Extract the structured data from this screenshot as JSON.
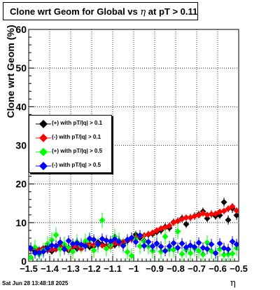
{
  "title": {
    "prefix": "Clone wrt Geom for Global vs",
    "eta": "η",
    "suffix": "at pT > 0.11"
  },
  "footer": "Sat Jun 28 13:48:18 2025",
  "ylabel": "Clone wrt Geom (%)",
  "xlabel": "η",
  "colors": {
    "black": "#000000",
    "red": "#ff0000",
    "green": "#00ff00",
    "blue": "#0000ff"
  },
  "chart_data": {
    "type": "scatter",
    "xlim": [
      -1.5,
      -0.5
    ],
    "ylim": [
      0,
      60
    ],
    "grid": true,
    "x_ticks": [
      "−1.5",
      "−1.4",
      "−1.3",
      "−1.2",
      "−1.1",
      "−1",
      "−0.9",
      "−0.8",
      "−0.7",
      "−0.6",
      "−0.5"
    ],
    "x_tick_values": [
      -1.5,
      -1.4,
      -1.3,
      -1.2,
      -1.1,
      -1.0,
      -0.9,
      -0.8,
      -0.7,
      -0.6,
      -0.5
    ],
    "y_ticks": [
      "0",
      "10",
      "20",
      "30",
      "40",
      "50",
      "60"
    ],
    "y_tick_values": [
      0,
      10,
      20,
      30,
      40,
      50,
      60
    ],
    "legend_position": "left-middle",
    "series": [
      {
        "name": "(+) with pT/|q| > 0.1",
        "color": "black",
        "x": [
          -1.49,
          -1.47,
          -1.45,
          -1.43,
          -1.41,
          -1.39,
          -1.37,
          -1.35,
          -1.33,
          -1.31,
          -1.29,
          -1.27,
          -1.25,
          -1.23,
          -1.21,
          -1.19,
          -1.17,
          -1.15,
          -1.13,
          -1.11,
          -1.09,
          -1.07,
          -1.05,
          -1.03,
          -1.01,
          -0.99,
          -0.97,
          -0.95,
          -0.93,
          -0.91,
          -0.89,
          -0.87,
          -0.85,
          -0.83,
          -0.81,
          -0.79,
          -0.77,
          -0.75,
          -0.73,
          -0.71,
          -0.69,
          -0.67,
          -0.65,
          -0.63,
          -0.61,
          -0.59,
          -0.57,
          -0.55,
          -0.53,
          -0.51
        ],
        "y": [
          3.2,
          2.6,
          3.0,
          3.4,
          3.9,
          2.6,
          3.2,
          4.4,
          3.7,
          2.8,
          3.7,
          3.3,
          4.1,
          4.6,
          3.7,
          3.9,
          4.9,
          4.4,
          3.9,
          4.4,
          4.2,
          4.9,
          4.6,
          5.3,
          5.9,
          6.9,
          6.1,
          5.3,
          6.9,
          7.1,
          7.6,
          8.0,
          8.9,
          8.6,
          10.1,
          10.4,
          11.1,
          9.6,
          11.3,
          11.7,
          12.1,
          12.9,
          11.1,
          12.2,
          11.7,
          11.9,
          15.3,
          10.7,
          13.7,
          11.9
        ],
        "err": [
          1.0,
          0.9,
          0.9,
          1.0,
          1.0,
          0.9,
          0.9,
          1.0,
          1.0,
          0.9,
          0.9,
          0.9,
          1.0,
          1.0,
          0.9,
          0.9,
          1.0,
          1.0,
          0.9,
          0.9,
          0.9,
          1.0,
          1.0,
          1.0,
          1.0,
          1.0,
          1.0,
          1.0,
          1.0,
          1.0,
          1.0,
          1.0,
          1.0,
          1.0,
          1.0,
          1.0,
          1.0,
          1.0,
          1.0,
          1.0,
          1.0,
          1.0,
          1.0,
          1.0,
          1.0,
          1.0,
          1.2,
          1.2,
          1.2,
          1.2
        ]
      },
      {
        "name": "(-) with pT/|q| > 0.1",
        "color": "red",
        "x": [
          -1.49,
          -1.47,
          -1.45,
          -1.43,
          -1.41,
          -1.39,
          -1.37,
          -1.35,
          -1.33,
          -1.31,
          -1.29,
          -1.27,
          -1.25,
          -1.23,
          -1.21,
          -1.19,
          -1.17,
          -1.15,
          -1.13,
          -1.11,
          -1.09,
          -1.07,
          -1.05,
          -1.03,
          -1.01,
          -0.99,
          -0.97,
          -0.95,
          -0.93,
          -0.91,
          -0.89,
          -0.87,
          -0.85,
          -0.83,
          -0.81,
          -0.79,
          -0.77,
          -0.75,
          -0.73,
          -0.71,
          -0.69,
          -0.67,
          -0.65,
          -0.63,
          -0.61,
          -0.59,
          -0.57,
          -0.55,
          -0.53,
          -0.51
        ],
        "y": [
          3.3,
          3.5,
          2.9,
          3.3,
          2.9,
          3.1,
          3.1,
          4.0,
          3.6,
          3.2,
          3.7,
          3.9,
          3.2,
          4.4,
          4.4,
          4.2,
          4.5,
          4.1,
          4.0,
          3.8,
          4.7,
          4.6,
          5.1,
          5.5,
          5.7,
          6.1,
          6.5,
          6.7,
          7.0,
          7.4,
          8.0,
          8.5,
          8.7,
          9.2,
          10.0,
          10.4,
          10.9,
          11.3,
          11.3,
          11.7,
          11.9,
          12.4,
          12.0,
          12.2,
          12.3,
          12.8,
          13.0,
          13.6,
          14.2,
          13.1
        ],
        "err": [
          0.8,
          0.8,
          0.8,
          0.8,
          0.8,
          0.8,
          0.8,
          0.8,
          0.8,
          0.8,
          0.8,
          0.8,
          0.8,
          0.8,
          0.8,
          0.8,
          0.8,
          0.8,
          0.8,
          0.8,
          0.8,
          0.8,
          0.8,
          0.8,
          0.8,
          0.8,
          0.8,
          0.8,
          0.8,
          0.8,
          0.8,
          0.8,
          0.8,
          0.8,
          0.8,
          0.8,
          0.8,
          0.8,
          0.8,
          0.8,
          0.8,
          0.8,
          0.8,
          0.8,
          0.8,
          0.8,
          0.9,
          0.9,
          0.9,
          0.9
        ]
      },
      {
        "name": "(+) with pT/|q| > 0.5",
        "color": "green",
        "x": [
          -1.49,
          -1.47,
          -1.45,
          -1.43,
          -1.41,
          -1.39,
          -1.37,
          -1.35,
          -1.33,
          -1.31,
          -1.29,
          -1.27,
          -1.25,
          -1.23,
          -1.21,
          -1.19,
          -1.17,
          -1.15,
          -1.13,
          -1.11,
          -1.09,
          -1.07,
          -1.05,
          -1.03,
          -1.01,
          -0.99,
          -0.97,
          -0.95,
          -0.93,
          -0.91,
          -0.89,
          -0.87,
          -0.85,
          -0.83,
          -0.81,
          -0.79,
          -0.77,
          -0.75,
          -0.73,
          -0.71,
          -0.69,
          -0.67,
          -0.65,
          -0.63,
          -0.61,
          -0.59,
          -0.57,
          -0.55,
          -0.53,
          -0.51
        ],
        "y": [
          1.0,
          3.6,
          1.8,
          2.8,
          4.5,
          5.5,
          6.8,
          3.2,
          4.4,
          3.6,
          2.5,
          5.0,
          4.1,
          5.2,
          5.5,
          2.8,
          4.2,
          10.6,
          3.3,
          4.2,
          6.4,
          5.4,
          4.1,
          2.4,
          1.4,
          5.7,
          3.9,
          5.1,
          3.8,
          2.7,
          4.5,
          2.5,
          6.4,
          3.1,
          3.0,
          7.7,
          1.9,
          3.0,
          2.1,
          3.3,
          2.7,
          1.8,
          4.8,
          2.6,
          2.1,
          3.1,
          1.7,
          1.8,
          2.0,
          3.4
        ],
        "err": [
          2.2,
          2.0,
          2.0,
          2.0,
          2.0,
          2.0,
          2.0,
          2.0,
          2.0,
          2.0,
          2.0,
          2.0,
          2.0,
          2.0,
          2.0,
          2.0,
          2.0,
          2.0,
          2.0,
          2.0,
          2.0,
          2.0,
          2.0,
          2.0,
          2.0,
          2.0,
          2.0,
          2.0,
          2.0,
          2.0,
          2.0,
          2.0,
          2.0,
          2.0,
          2.0,
          2.0,
          2.0,
          2.0,
          2.0,
          2.0,
          2.0,
          2.0,
          2.0,
          2.0,
          2.0,
          2.0,
          2.0,
          2.0,
          2.0,
          2.0
        ]
      },
      {
        "name": "(-) with pT/|q| > 0.5",
        "color": "blue",
        "x": [
          -1.49,
          -1.47,
          -1.45,
          -1.43,
          -1.41,
          -1.39,
          -1.37,
          -1.35,
          -1.33,
          -1.31,
          -1.29,
          -1.27,
          -1.25,
          -1.23,
          -1.21,
          -1.19,
          -1.17,
          -1.15,
          -1.13,
          -1.11,
          -1.09,
          -1.07,
          -1.05,
          -1.03,
          -1.01,
          -0.99,
          -0.97,
          -0.95,
          -0.93,
          -0.91,
          -0.89,
          -0.87,
          -0.85,
          -0.83,
          -0.81,
          -0.79,
          -0.77,
          -0.75,
          -0.73,
          -0.71,
          -0.69,
          -0.67,
          -0.65,
          -0.63,
          -0.61,
          -0.59,
          -0.57,
          -0.55,
          -0.53,
          -0.51
        ],
        "y": [
          3.4,
          2.1,
          2.2,
          2.5,
          3.3,
          4.1,
          4.0,
          4.9,
          3.1,
          5.3,
          4.5,
          4.7,
          4.3,
          3.9,
          5.9,
          5.6,
          4.4,
          5.8,
          5.4,
          5.2,
          5.7,
          5.1,
          4.0,
          5.6,
          6.1,
          5.0,
          6.7,
          4.0,
          5.0,
          3.9,
          4.6,
          3.8,
          2.7,
          3.9,
          4.7,
          3.5,
          4.6,
          3.6,
          4.1,
          3.7,
          4.8,
          3.5,
          3.2,
          4.4,
          2.1,
          4.6,
          3.4,
          3.1,
          5.1,
          4.4
        ],
        "err": [
          1.5,
          1.4,
          1.4,
          1.4,
          1.4,
          1.4,
          1.4,
          1.4,
          1.4,
          1.4,
          1.4,
          1.4,
          1.4,
          1.4,
          1.4,
          1.4,
          1.4,
          1.4,
          1.4,
          1.4,
          1.4,
          1.4,
          1.4,
          1.4,
          1.4,
          1.4,
          1.4,
          1.4,
          1.4,
          1.4,
          1.4,
          1.4,
          1.4,
          1.4,
          1.4,
          1.4,
          1.4,
          1.4,
          1.4,
          1.4,
          1.4,
          1.4,
          1.4,
          1.4,
          1.4,
          1.4,
          1.4,
          1.4,
          1.4,
          1.4
        ]
      }
    ]
  }
}
